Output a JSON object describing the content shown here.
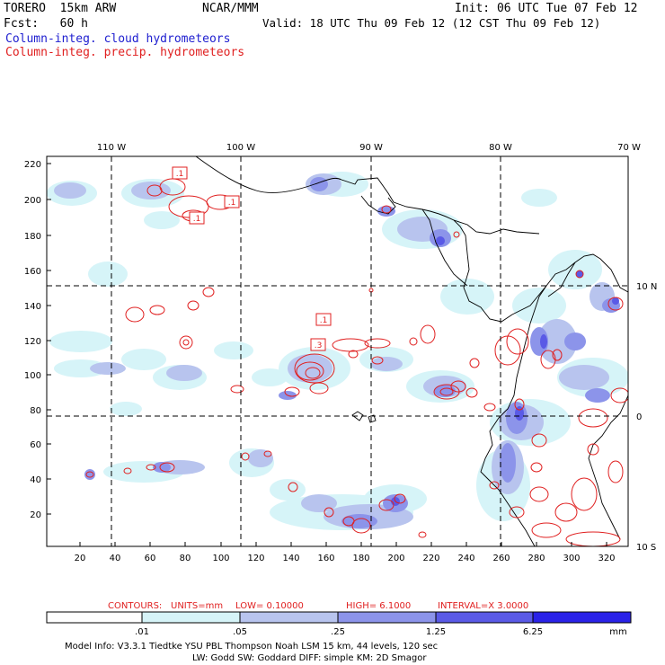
{
  "header": {
    "model": "TORERO  15km ARW",
    "org": "NCAR/MMM",
    "init": "Init: 06 UTC Tue 07 Feb 12",
    "fcst": "Fcst:   60 h",
    "valid": "Valid: 18 UTC Thu 09 Feb 12 (12 CST Thu 09 Feb 12)",
    "field_cloud": "Column-integ. cloud hydrometeors",
    "field_precip": "Column-integ. precip. hydrometeors"
  },
  "colors": {
    "cloud_text": "#2020d0",
    "precip_text": "#e02020",
    "contour": "#e02020",
    "coast": "#000000",
    "shade_1": "#d6f4f8",
    "shade_2": "#b8c4ee",
    "shade_3": "#8c94ea",
    "shade_4": "#5a5ae6",
    "shade_5": "#2a22e8"
  },
  "axes": {
    "top_lon_labels": [
      "110 W",
      "100 W",
      "90 W",
      "80 W",
      "70 W"
    ],
    "right_lat_labels": [
      "10 N",
      "0",
      "10 S"
    ],
    "left_ticks": [
      "220",
      "200",
      "180",
      "160",
      "140",
      "120",
      "100",
      "80",
      "60",
      "40",
      "20"
    ],
    "bottom_ticks": [
      "20",
      "40",
      "60",
      "80",
      "100",
      "120",
      "140",
      "160",
      "180",
      "200",
      "220",
      "240",
      "260",
      "280",
      "300",
      "320"
    ]
  },
  "contour_labels": [
    ".1",
    ".1",
    ".1",
    ".1",
    ".3"
  ],
  "contour_info": {
    "contours": "CONTOURS:",
    "units": "UNITS=mm",
    "low": "LOW= 0.10000",
    "high": "HIGH=  6.1000",
    "interval": "INTERVAL=X  3.0000"
  },
  "colorbar": {
    "levels": [
      ".01",
      ".05",
      ".25",
      "1.25",
      "6.25"
    ],
    "unit": "mm"
  },
  "footer": {
    "line1": "Model Info: V3.3.1    Tiedtke YSU PBL  Thompson     Noah LSM  15 km,   44 levels,  120 sec",
    "line2": "LW: Godd SW: Goddard DIFF: simple KM: 2D Smagor"
  }
}
